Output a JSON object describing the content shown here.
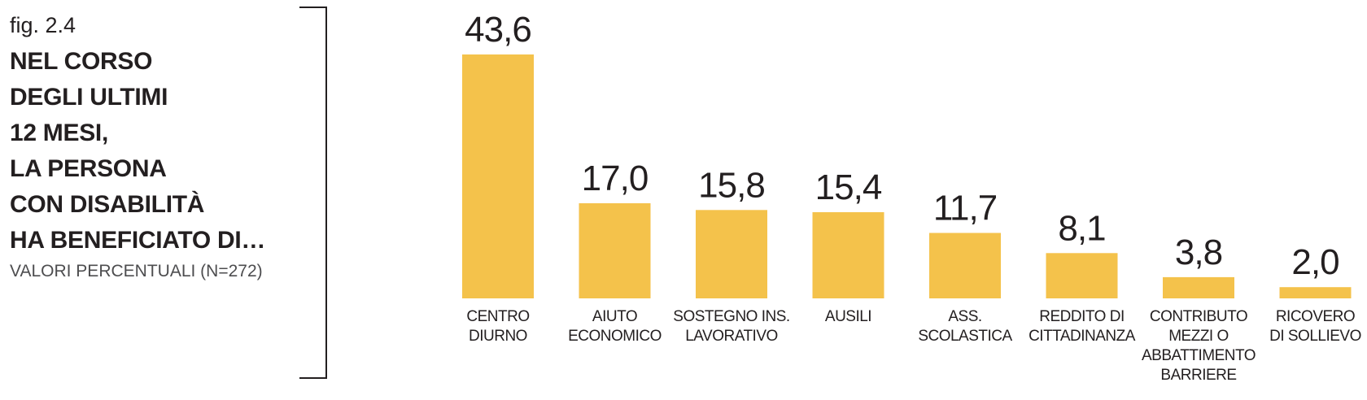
{
  "caption": {
    "fig_label": "fig. 2.4",
    "title_lines": [
      "NEL CORSO",
      "DEGLI ULTIMI",
      "12 MESI,",
      "LA PERSONA",
      "CON DISABILITÀ",
      "HA BENEFICIATO DI…"
    ],
    "subtitle": "VALORI PERCENTUALI (N=272)"
  },
  "colors": {
    "bar": "#f4c24b",
    "text": "#231f20",
    "subtitle": "#4d4d4f"
  },
  "chart_data": {
    "type": "bar",
    "title": "",
    "xlabel": "",
    "ylabel": "",
    "ylim": [
      0,
      43.6
    ],
    "grid": false,
    "categories": [
      [
        "CENTRO",
        "DIURNO"
      ],
      [
        "AIUTO",
        "ECONOMICO"
      ],
      [
        "SOSTEGNO INS.",
        "LAVORATIVO"
      ],
      [
        "AUSILI"
      ],
      [
        "ASS.",
        "SCOLASTICA"
      ],
      [
        "REDDITO DI",
        "CITTADINANZA"
      ],
      [
        "CONTRIBUTO",
        "MEZZI O",
        "ABBATTIMENTO",
        "BARRIERE"
      ],
      [
        "RICOVERO",
        "DI SOLLIEVO"
      ]
    ],
    "values": [
      43.6,
      17.0,
      15.8,
      15.4,
      11.7,
      8.1,
      3.8,
      2.0
    ],
    "value_labels": [
      "43,6",
      "17,0",
      "15,8",
      "15,4",
      "11,7",
      "8,1",
      "3,8",
      "2,0"
    ]
  }
}
